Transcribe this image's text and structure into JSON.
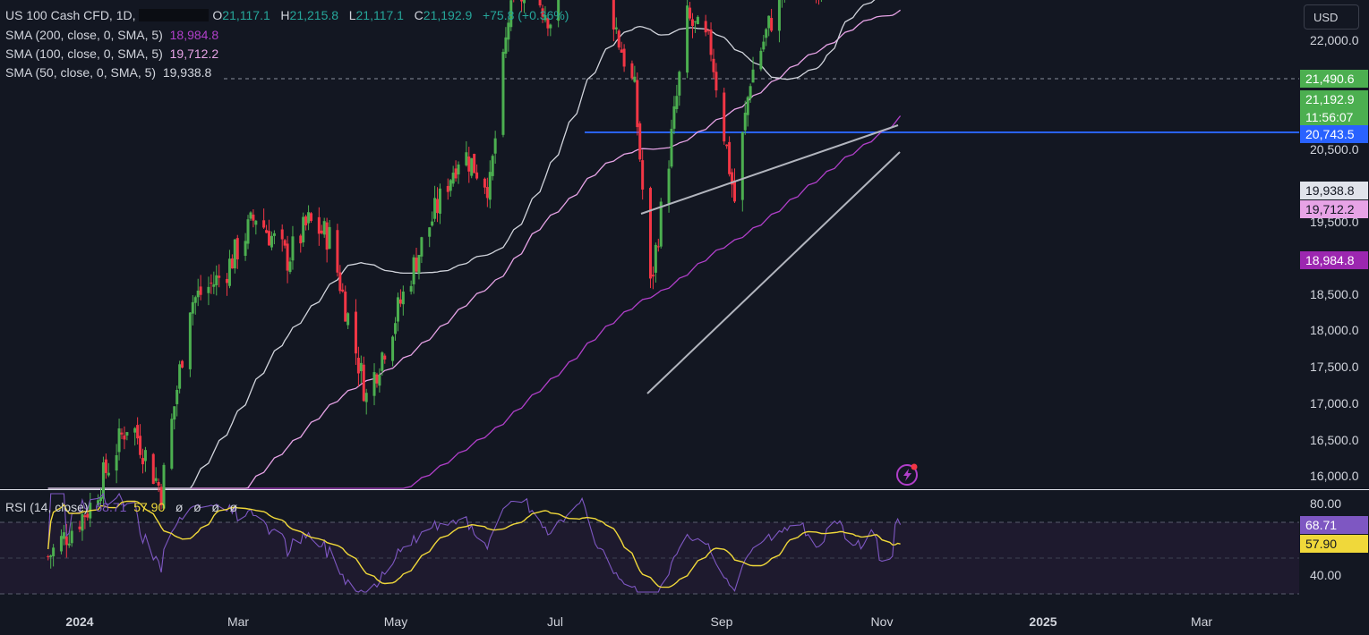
{
  "header": {
    "symbol": "US 100 Cash CFD, 1D,",
    "o_label": "O",
    "o_value": "21,117.1",
    "h_label": "H",
    "h_value": "21,215.8",
    "l_label": "L",
    "l_value": "21,117.1",
    "c_label": "C",
    "c_value": "21,192.9",
    "change": "+75.8 (+0.36%)"
  },
  "indicators": {
    "sma200": {
      "label": "SMA (200, close, 0, SMA, 5)",
      "value": "18,984.8",
      "color": "#b03fc9"
    },
    "sma100": {
      "label": "SMA (100, close, 0, SMA, 5)",
      "value": "19,712.2",
      "color": "#e7a3e6"
    },
    "sma50": {
      "label": "SMA (50, close, 0, SMA, 5)",
      "value": "19,938.8",
      "color": "#d1d4dc"
    },
    "rsi": {
      "label": "RSI (14, close)",
      "value": "68.71",
      "ma_value": "57.90",
      "extras": [
        "ø",
        "ø",
        "ø",
        "ø"
      ]
    }
  },
  "currency": "USD",
  "price_axis": {
    "ticks": [
      "22,000.0",
      "20,500.0",
      "19,500.0",
      "18,500.0",
      "18,000.0",
      "17,500.0",
      "17,000.0",
      "16,500.0",
      "16,000.0"
    ],
    "labels": {
      "dashed_level": "21,490.6",
      "last_price": "21,192.9",
      "countdown": "11:56:07",
      "resistance": "20,743.5",
      "sma50": "19,938.8",
      "sma100": "19,712.2",
      "sma200": "18,984.8"
    }
  },
  "rsi_axis": {
    "ticks": [
      "80.00",
      "40.00"
    ],
    "labels": {
      "rsi": "68.71",
      "ma": "57.90"
    }
  },
  "time_axis": [
    {
      "label": "2024",
      "bold": true
    },
    {
      "label": "Mar",
      "bold": false
    },
    {
      "label": "May",
      "bold": false
    },
    {
      "label": "Jul",
      "bold": false
    },
    {
      "label": "Sep",
      "bold": false
    },
    {
      "label": "Nov",
      "bold": false
    },
    {
      "label": "2025",
      "bold": true
    },
    {
      "label": "Mar",
      "bold": false
    }
  ],
  "colors": {
    "background": "#131722",
    "up": "#4caf50",
    "down": "#f23645",
    "resistance": "#2962ff",
    "rsi_line": "#7e57c2",
    "rsi_ma": "#f0d83a"
  },
  "chart_data": {
    "type": "candlestick",
    "symbol": "US 100 Cash CFD",
    "timeframe": "1D",
    "x_range": [
      "2023-12",
      "2025-03"
    ],
    "y_range": [
      16000,
      22000
    ],
    "trend_anchors": [
      {
        "date": "2023-12-20",
        "close": 15950
      },
      {
        "date": "2024-01-05",
        "close": 16300
      },
      {
        "date": "2024-01-20",
        "close": 16900
      },
      {
        "date": "2024-02-01",
        "close": 16400
      },
      {
        "date": "2024-02-12",
        "close": 17700
      },
      {
        "date": "2024-02-25",
        "close": 17900
      },
      {
        "date": "2024-03-08",
        "close": 18300
      },
      {
        "date": "2024-03-20",
        "close": 18000
      },
      {
        "date": "2024-03-28",
        "close": 18250
      },
      {
        "date": "2024-04-05",
        "close": 18150
      },
      {
        "date": "2024-04-19",
        "close": 17050
      },
      {
        "date": "2024-04-30",
        "close": 17600
      },
      {
        "date": "2024-05-10",
        "close": 18100
      },
      {
        "date": "2024-05-25",
        "close": 18750
      },
      {
        "date": "2024-06-05",
        "close": 18500
      },
      {
        "date": "2024-06-12",
        "close": 19650
      },
      {
        "date": "2024-06-20",
        "close": 19900
      },
      {
        "date": "2024-06-28",
        "close": 19650
      },
      {
        "date": "2024-07-05",
        "close": 20100
      },
      {
        "date": "2024-07-10",
        "close": 20650
      },
      {
        "date": "2024-07-16",
        "close": 20150
      },
      {
        "date": "2024-07-24",
        "close": 19500
      },
      {
        "date": "2024-07-30",
        "close": 19150
      },
      {
        "date": "2024-08-05",
        "close": 17800
      },
      {
        "date": "2024-08-12",
        "close": 18700
      },
      {
        "date": "2024-08-19",
        "close": 19650
      },
      {
        "date": "2024-08-28",
        "close": 19450
      },
      {
        "date": "2024-09-06",
        "close": 18400
      },
      {
        "date": "2024-09-12",
        "close": 19250
      },
      {
        "date": "2024-09-20",
        "close": 19650
      },
      {
        "date": "2024-09-30",
        "close": 20100
      },
      {
        "date": "2024-10-08",
        "close": 19900
      },
      {
        "date": "2024-10-15",
        "close": 20350
      },
      {
        "date": "2024-10-23",
        "close": 20150
      },
      {
        "date": "2024-10-29",
        "close": 20450
      },
      {
        "date": "2024-11-01",
        "close": 19950
      },
      {
        "date": "2024-11-05",
        "close": 20150
      },
      {
        "date": "2024-11-06",
        "close": 20750
      },
      {
        "date": "2024-11-08",
        "close": 21192.9
      }
    ],
    "resistance_level": 20743.5,
    "dashed_level": 21490.6,
    "trendlines": [
      {
        "name": "upper",
        "from": {
          "date": "2024-08-05",
          "price": 19550
        },
        "to": {
          "date": "2024-11-07",
          "price": 20750
        }
      },
      {
        "name": "lower",
        "from": {
          "date": "2024-08-06",
          "price": 17150
        },
        "to": {
          "date": "2024-11-07",
          "price": 20450
        }
      }
    ],
    "sma_last": {
      "sma50": 19938.8,
      "sma100": 19712.2,
      "sma200": 18984.8
    },
    "rsi": {
      "last": 68.71,
      "ma_last": 57.9,
      "ylim": [
        30,
        90
      ],
      "levels": [
        70,
        50,
        30
      ]
    }
  }
}
